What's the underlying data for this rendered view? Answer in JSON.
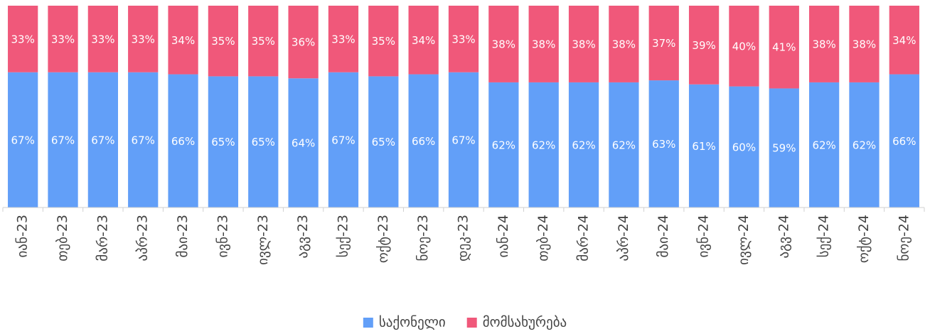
{
  "chart_data": {
    "type": "stacked_bar",
    "categories": [
      "იან-23",
      "თებ-23",
      "მარ-23",
      "აპრ-23",
      "მაი-23",
      "ივნ-23",
      "ივლ-23",
      "აგვ-23",
      "სექ-23",
      "ოქტ-23",
      "ნოე-23",
      "დეკ-23",
      "იან-24",
      "თებ-24",
      "მარ-24",
      "აპრ-24",
      "მაი-24",
      "ივნ-24",
      "ივლ-24",
      "აგვ-24",
      "სექ-24",
      "ოქტ-24",
      "ნოე-24"
    ],
    "series": [
      {
        "name": "საქონელი",
        "color": "#629ff8",
        "values": [
          67,
          67,
          67,
          67,
          66,
          65,
          65,
          64,
          67,
          65,
          66,
          67,
          62,
          62,
          62,
          62,
          63,
          61,
          60,
          59,
          62,
          62,
          66
        ],
        "value_labels": [
          "67%",
          "67%",
          "67%",
          "67%",
          "66%",
          "65%",
          "65%",
          "64%",
          "67%",
          "65%",
          "66%",
          "67%",
          "62%",
          "62%",
          "62%",
          "62%",
          "63%",
          "61%",
          "60%",
          "59%",
          "62%",
          "62%",
          "66%"
        ]
      },
      {
        "name": "მომსახურება",
        "color": "#f0587a",
        "values": [
          33,
          33,
          33,
          33,
          34,
          35,
          35,
          36,
          33,
          35,
          34,
          33,
          38,
          38,
          38,
          38,
          37,
          39,
          40,
          41,
          38,
          38,
          34
        ],
        "value_labels": [
          "33%",
          "33%",
          "33%",
          "33%",
          "34%",
          "35%",
          "35%",
          "36%",
          "33%",
          "35%",
          "34%",
          "33%",
          "38%",
          "38%",
          "38%",
          "38%",
          "37%",
          "39%",
          "40%",
          "41%",
          "38%",
          "38%",
          "34%"
        ]
      }
    ],
    "ylim": [
      0,
      100
    ],
    "legend": "bottom"
  }
}
